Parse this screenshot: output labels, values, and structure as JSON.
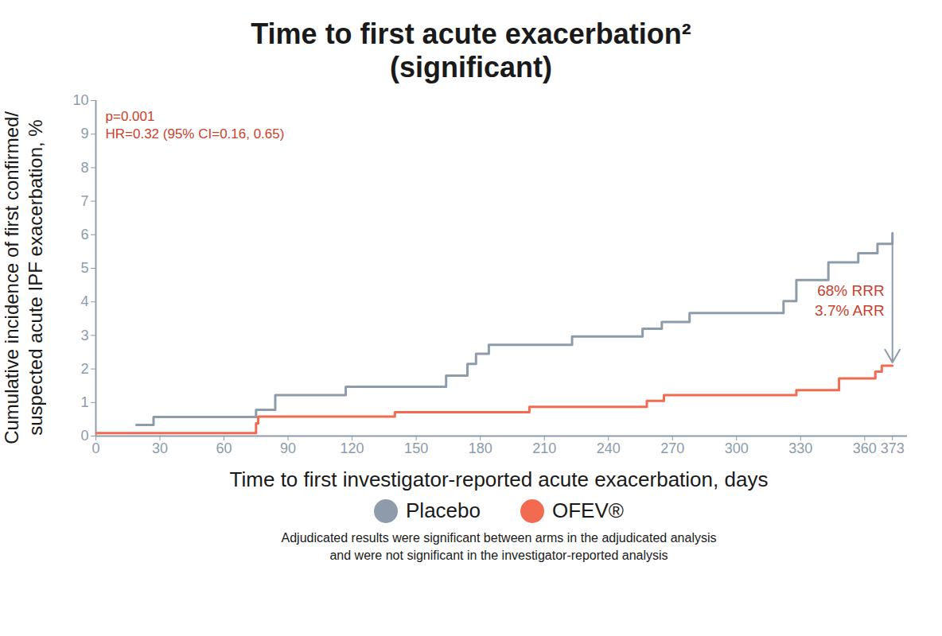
{
  "chart_data": {
    "type": "line",
    "title": "Time to first acute exacerbation²",
    "subtitle": "(significant)",
    "xlabel": "Time to first investigator-reported acute exacerbation, days",
    "ylabel": "Cumulative incidence of first confirmed/\nsuspected acute IPF exacerbation, %",
    "annotations": [
      "p=0.001",
      "HR=0.32 (95% CI=0.16, 0.65)",
      "68% RRR",
      "3.7% ARR"
    ],
    "note": "Adjudicated results were significant between arms in the adjudicated analysis\nand were not significant in the investigator-reported analysis",
    "xlim": [
      0,
      380
    ],
    "xticks": [
      0,
      30,
      60,
      90,
      120,
      150,
      180,
      210,
      240,
      270,
      300,
      330,
      360,
      373
    ],
    "ylim": [
      0,
      10
    ],
    "yticks": [
      0,
      1,
      2,
      3,
      4,
      5,
      6,
      7,
      8,
      9,
      10
    ],
    "line_style": "step",
    "legend": "bottom",
    "series": [
      {
        "name": "Placebo",
        "color": "#8d9baa",
        "x": [
          19,
          27,
          75,
          84,
          117,
          164,
          174,
          178,
          184,
          223,
          256,
          265,
          278,
          322,
          328,
          343,
          357,
          366,
          373
        ],
        "values": [
          0.33,
          0.57,
          0.78,
          1.22,
          1.47,
          1.8,
          2.15,
          2.45,
          2.72,
          2.97,
          3.2,
          3.4,
          3.67,
          4.02,
          4.65,
          5.18,
          5.45,
          5.73,
          6.05
        ]
      },
      {
        "name": "OFEV®",
        "color": "#f26b50",
        "x": [
          0,
          75,
          76,
          140,
          203,
          258,
          266,
          328,
          348,
          365,
          368,
          373
        ],
        "values": [
          0.09,
          0.38,
          0.58,
          0.71,
          0.87,
          1.05,
          1.22,
          1.37,
          1.72,
          1.92,
          2.1,
          2.1
        ]
      }
    ]
  }
}
